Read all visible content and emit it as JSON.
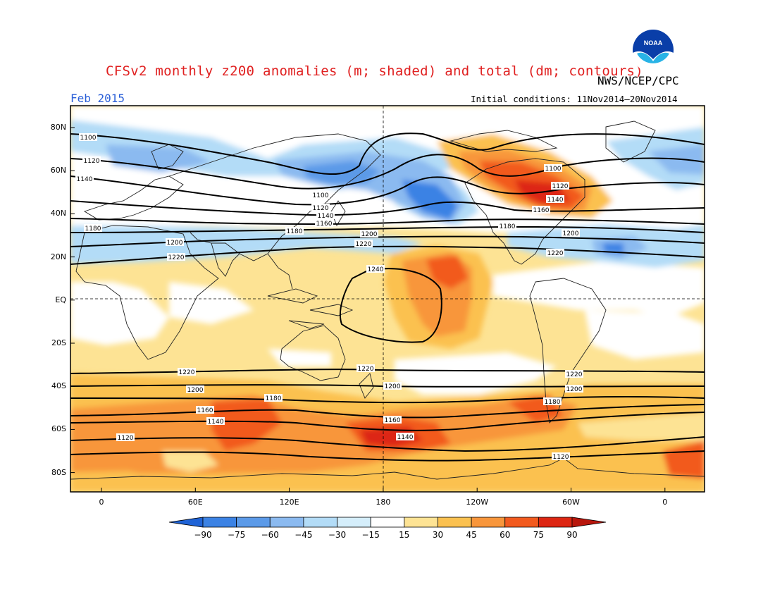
{
  "title": "CFSv2 monthly z200 anomalies (m; shaded) and total (dm; contours)",
  "agency": "NWS/NCEP/CPC",
  "month": "Feb 2015",
  "initial_conditions": "Initial conditions: 11Nov2014–20Nov2014",
  "logo": {
    "icon": "noaa-logo-icon",
    "text": "NOAA"
  },
  "y_axis_labels": [
    "80N",
    "60N",
    "40N",
    "20N",
    "EQ",
    "20S",
    "40S",
    "60S",
    "80S"
  ],
  "x_axis_labels": [
    "0",
    "60E",
    "120E",
    "180",
    "120W",
    "60W",
    "0"
  ],
  "colorbar": {
    "labels": [
      "−90",
      "−75",
      "−60",
      "−45",
      "−30",
      "−15",
      "15",
      "30",
      "45",
      "60",
      "75",
      "90"
    ],
    "colors": [
      "#1f63d6",
      "#3b82e4",
      "#5b9ae8",
      "#8bbaf0",
      "#b3dcf7",
      "#d5eefb",
      "#ffffff",
      "#fde394",
      "#fbc150",
      "#f8963b",
      "#f25a1e",
      "#dd2612",
      "#b8160c"
    ]
  },
  "contour_labels": {
    "nh": [
      "1100",
      "1120",
      "1140",
      "1160",
      "1180",
      "1200",
      "1220",
      "1240"
    ],
    "sh": [
      "1220",
      "1200",
      "1180",
      "1160",
      "1140",
      "1120"
    ]
  },
  "map_features": {
    "coastlines": "world",
    "projection": "cylindrical equidistant, 20W to 20E",
    "reference_lines": [
      "equator (dashed)",
      "dateline 180 (dashed)"
    ]
  }
}
